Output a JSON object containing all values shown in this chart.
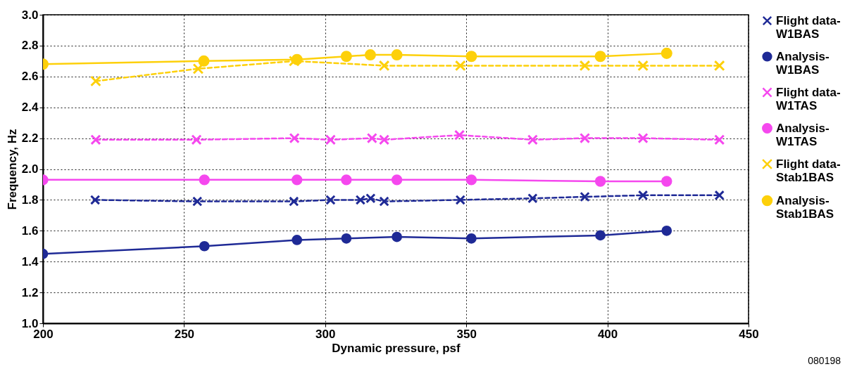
{
  "chart_data": {
    "type": "line",
    "xlabel": "Dynamic pressure, psf",
    "ylabel": "Frequency, Hz",
    "annotations": [
      "080198"
    ],
    "xlim": [
      200,
      450
    ],
    "xticks": [
      200,
      250,
      300,
      350,
      400,
      450
    ],
    "ylim": [
      1.0,
      3.0
    ],
    "yticks": [
      {
        "value": 1,
        "label": "1.0"
      },
      {
        "value": 1.2,
        "label": "1.2"
      },
      {
        "value": 1.4,
        "label": "1.4"
      },
      {
        "value": 1.6,
        "label": "1.6"
      },
      {
        "value": 1.8,
        "label": "1.8"
      },
      {
        "value": 2,
        "label": "2.0"
      },
      {
        "value": 2.2,
        "label": "2.2"
      },
      {
        "value": 2.4,
        "label": "2.4"
      },
      {
        "value": 2.6,
        "label": "2.6"
      },
      {
        "value": 2.8,
        "label": "2.8"
      },
      {
        "value": 3,
        "label": "3.0"
      }
    ],
    "grid": true,
    "legend": "right",
    "series": [
      {
        "name": "Flight data-W1BAS",
        "color": "#1f2a96",
        "line_style": "dashed",
        "marker": "cross",
        "x": [
          218.5,
          254.7,
          288.9,
          301.9,
          312.5,
          316.1,
          320.9,
          347.9,
          373.5,
          392,
          412.6,
          439.7
        ],
        "values": [
          1.8,
          1.79,
          1.79,
          1.8,
          1.8,
          1.81,
          1.79,
          1.8,
          1.81,
          1.82,
          1.83,
          1.83
        ]
      },
      {
        "name": "Analysis-W1BAS",
        "color": "#1f2a96",
        "line_style": "solid",
        "marker": "circle",
        "x": [
          200,
          257.2,
          290,
          307.5,
          325.4,
          351.8,
          397.5,
          421
        ],
        "values": [
          1.45,
          1.5,
          1.54,
          1.55,
          1.56,
          1.55,
          1.57,
          1.6
        ]
      },
      {
        "name": "Flight data-W1TAS",
        "color": "#f548ee",
        "line_style": "dashed",
        "marker": "cross",
        "x": [
          218.7,
          254.4,
          289.1,
          301.9,
          316.6,
          320.9,
          347.6,
          373.5,
          392,
          412.6,
          439.7
        ],
        "values": [
          2.19,
          2.19,
          2.2,
          2.19,
          2.2,
          2.19,
          2.22,
          2.19,
          2.2,
          2.2,
          2.19
        ]
      },
      {
        "name": "Analysis-W1TAS",
        "color": "#f548ee",
        "line_style": "solid",
        "marker": "circle",
        "x": [
          200,
          257.2,
          290,
          307.5,
          325.4,
          351.8,
          397.5,
          421
        ],
        "values": [
          1.93,
          1.93,
          1.93,
          1.93,
          1.93,
          1.93,
          1.92,
          1.92
        ]
      },
      {
        "name": "Flight data-Stab1BAS",
        "color": "#fdd00a",
        "line_style": "dashed",
        "marker": "cross",
        "x": [
          218.7,
          255,
          289,
          320.9,
          347.9,
          392,
          412.6,
          439.7
        ],
        "values": [
          2.57,
          2.65,
          2.7,
          2.67,
          2.67,
          2.67,
          2.67,
          2.67
        ]
      },
      {
        "name": "Analysis-Stab1BAS",
        "color": "#fdd00a",
        "line_style": "solid",
        "marker": "circle",
        "x": [
          200,
          257,
          290,
          307.5,
          316,
          325.4,
          351.8,
          397.5,
          421
        ],
        "values": [
          2.68,
          2.7,
          2.71,
          2.73,
          2.74,
          2.74,
          2.73,
          2.73,
          2.75
        ]
      }
    ]
  }
}
